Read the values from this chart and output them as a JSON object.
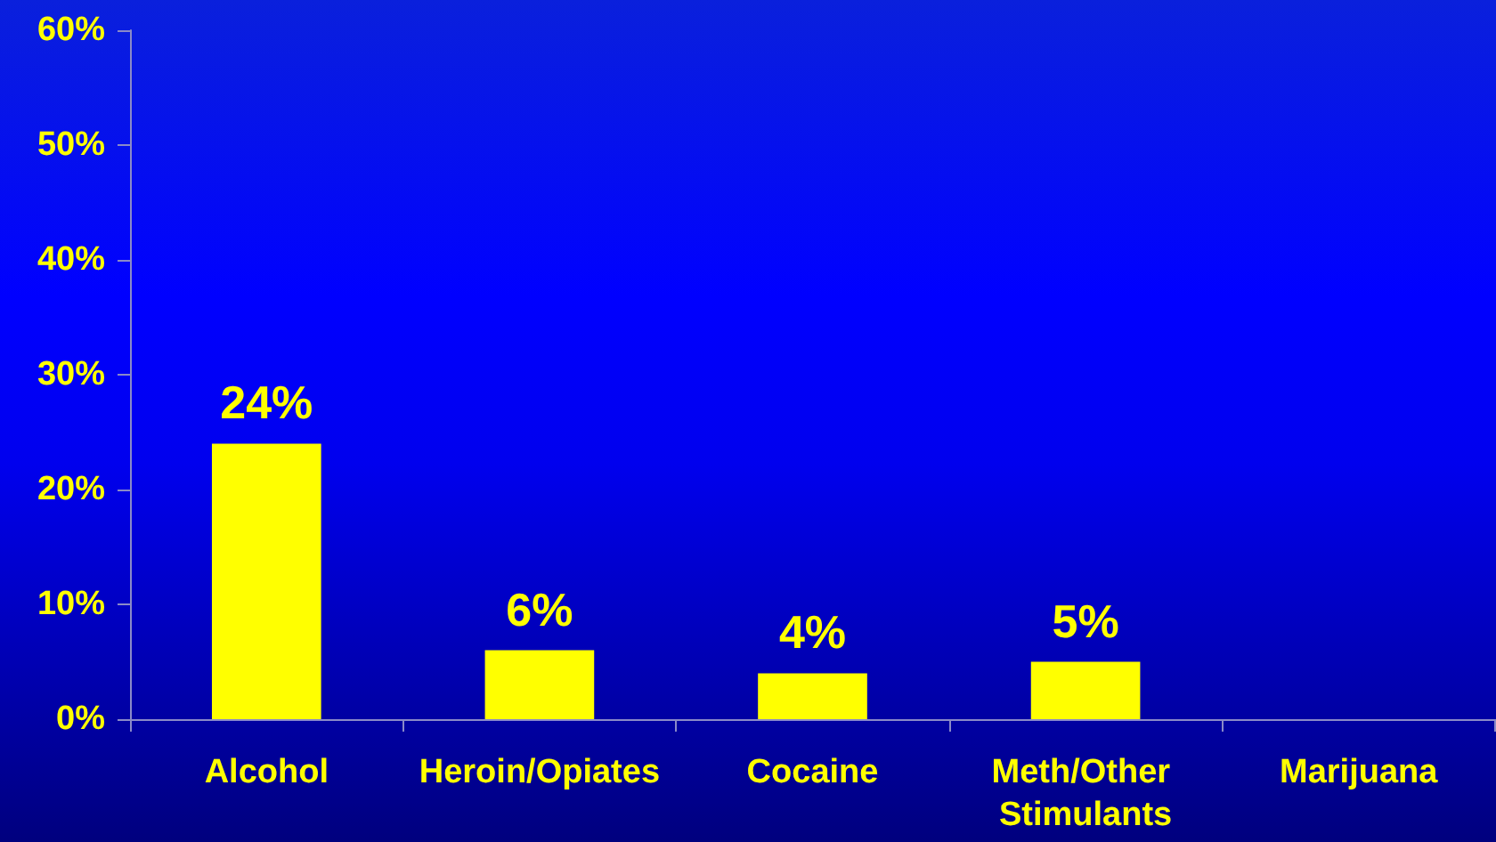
{
  "chart_data": {
    "type": "bar",
    "categories": [
      "Alcohol",
      "Heroin/Opiates",
      "Cocaine",
      "Meth/Other Stimulants",
      "Marijuana"
    ],
    "values": [
      24,
      6,
      4,
      5,
      null
    ],
    "value_labels": [
      "24%",
      "6%",
      "4%",
      "5%",
      null
    ],
    "color": "#ffff00",
    "ylim": [
      0,
      60
    ],
    "yticks": [
      {
        "value": 0,
        "label": "0%"
      },
      {
        "value": 10,
        "label": "10%"
      },
      {
        "value": 20,
        "label": "20%"
      },
      {
        "value": 30,
        "label": "30%"
      },
      {
        "value": 40,
        "label": "40%"
      },
      {
        "value": 50,
        "label": "50%"
      },
      {
        "value": 60,
        "label": "60%"
      }
    ]
  }
}
